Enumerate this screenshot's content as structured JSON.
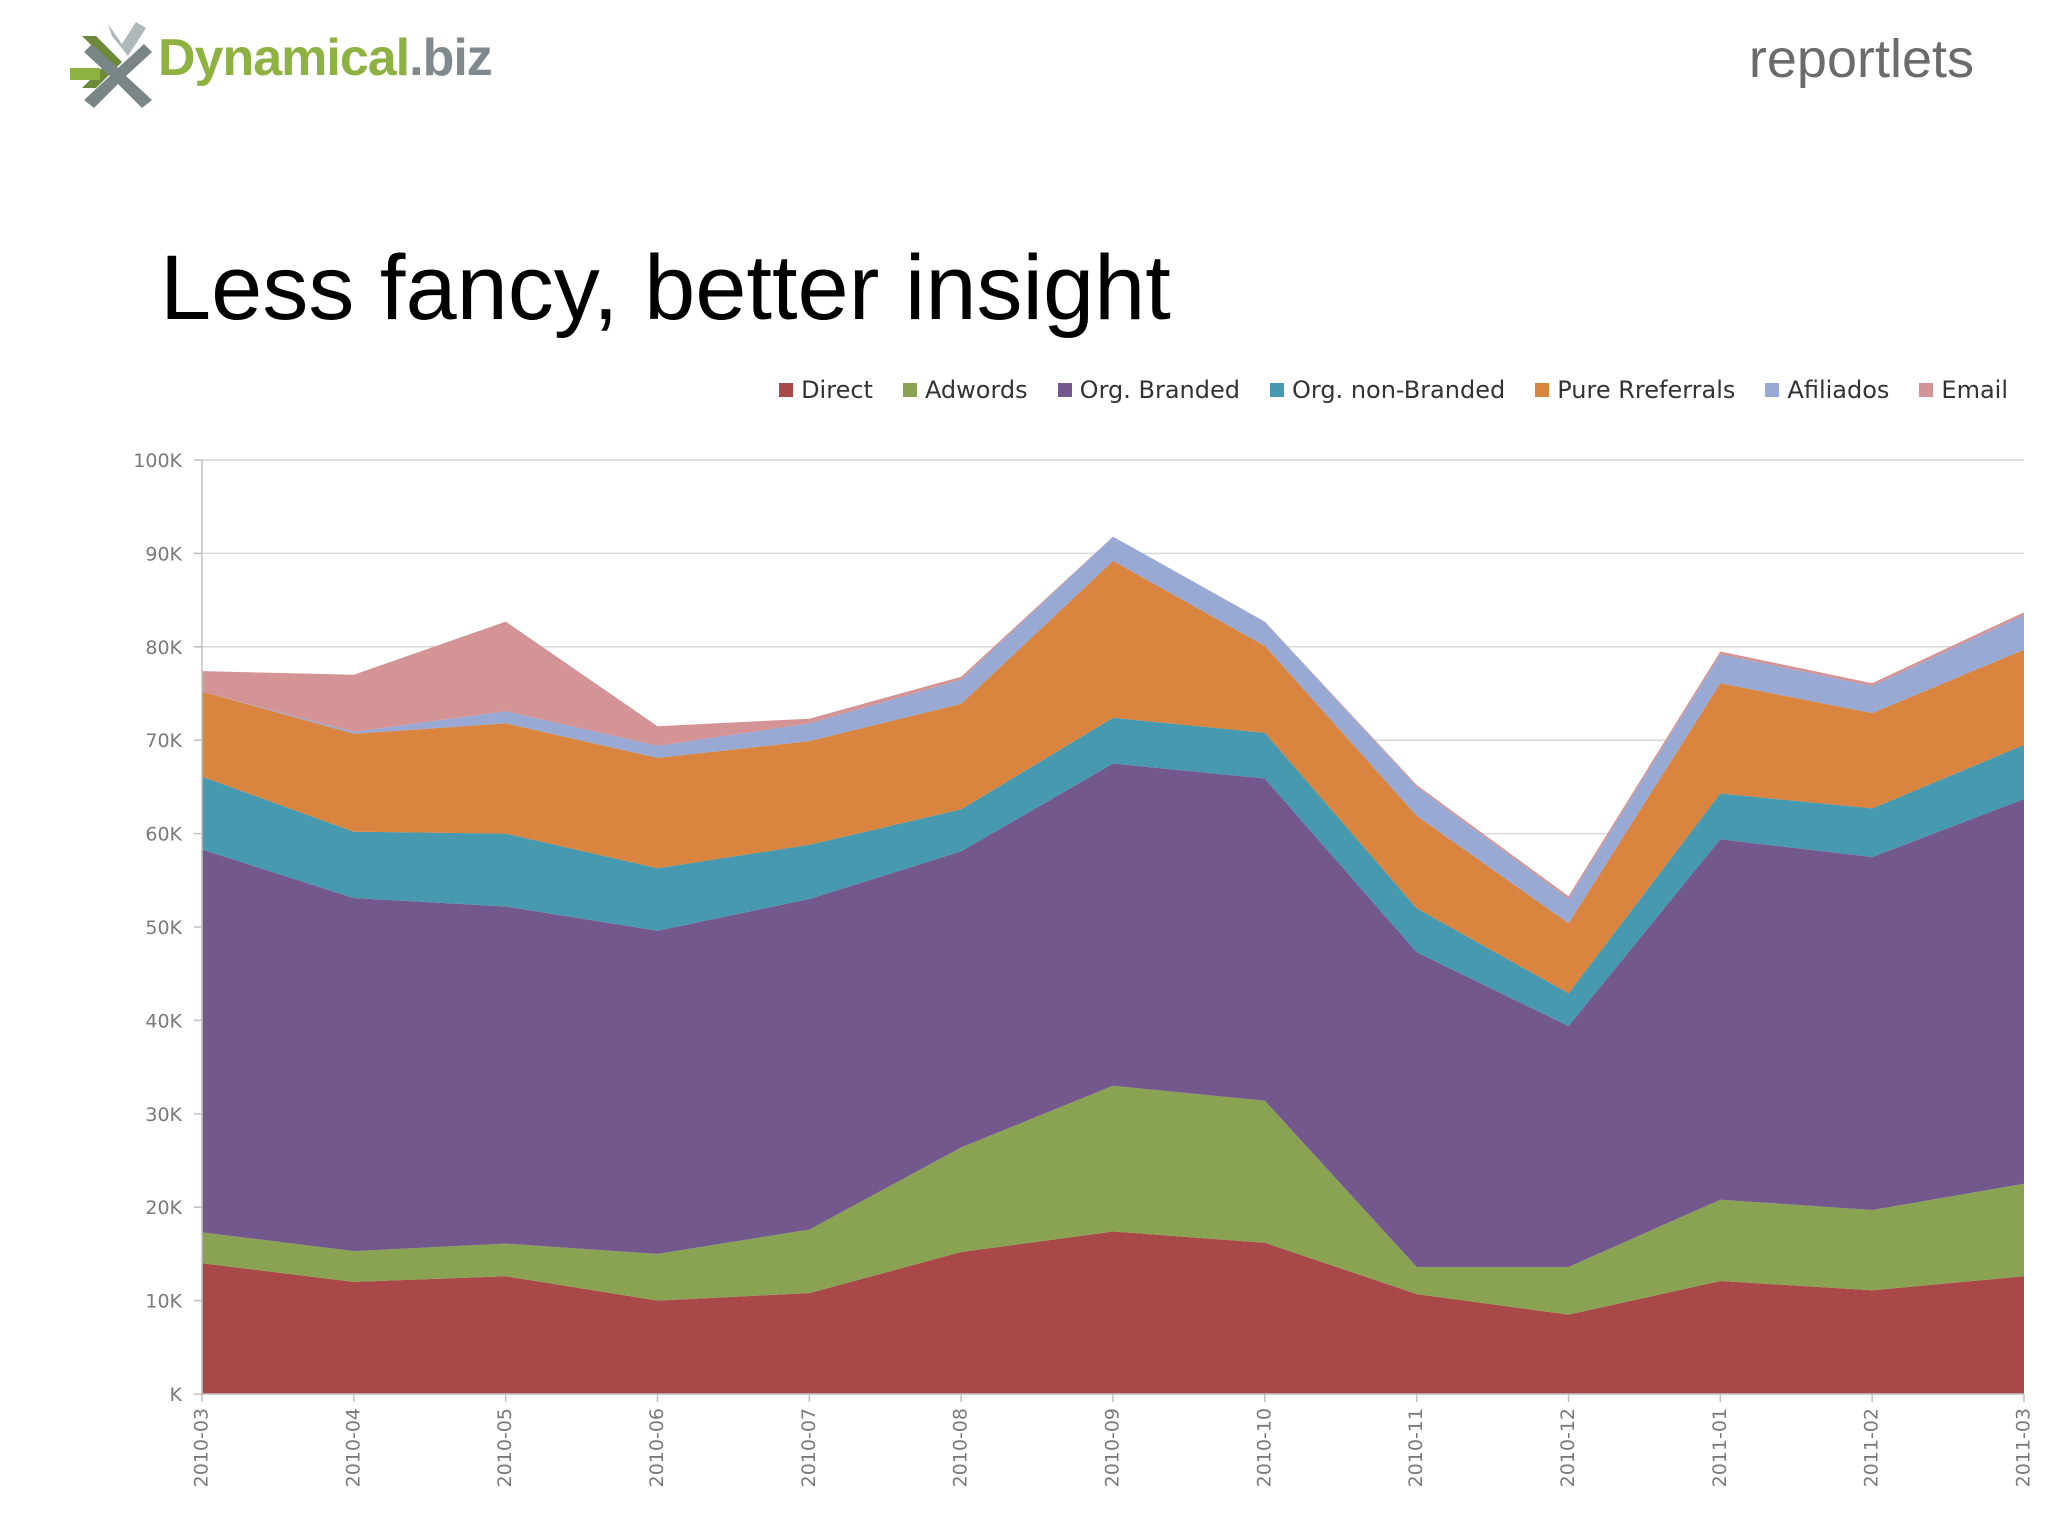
{
  "header": {
    "logo_text_main": "Dynamical",
    "logo_text_suffix": ".biz",
    "brand_right": "reportlets"
  },
  "slide": {
    "title": "Less fancy, better insight"
  },
  "colors": {
    "Direct": "#a84848",
    "Adwords": "#8aa352",
    "Org. Branded": "#73588d",
    "Org. non-Branded": "#4699af",
    "Pure Rreferrals": "#d9843f",
    "Afiliados": "#98a9d3",
    "Email": "#d49394"
  },
  "chart_data": {
    "type": "area",
    "stacked": true,
    "ylim": [
      0,
      100000
    ],
    "y_ticks": [
      "K",
      "10K",
      "20K",
      "30K",
      "40K",
      "50K",
      "60K",
      "70K",
      "80K",
      "90K",
      "100K"
    ],
    "y_tick_values": [
      0,
      10000,
      20000,
      30000,
      40000,
      50000,
      60000,
      70000,
      80000,
      90000,
      100000
    ],
    "categories": [
      "2010-03",
      "2010-04",
      "2010-05",
      "2010-06",
      "2010-07",
      "2010-08",
      "2010-09",
      "2010-10",
      "2010-11",
      "2010-12",
      "2011-01",
      "2011-02",
      "2011-03"
    ],
    "legend_position": "top-right",
    "grid": true,
    "series": [
      {
        "name": "Direct",
        "values": [
          14000,
          12000,
          12600,
          10000,
          10800,
          15200,
          17400,
          16200,
          10700,
          8500,
          12100,
          11100,
          12600
        ]
      },
      {
        "name": "Adwords",
        "values": [
          3300,
          3300,
          3500,
          5000,
          6800,
          11200,
          15600,
          15200,
          2900,
          5100,
          8700,
          8600,
          9900
        ]
      },
      {
        "name": "Org. Branded",
        "values": [
          41000,
          37800,
          36100,
          34600,
          35400,
          31700,
          34500,
          34500,
          33700,
          25800,
          38600,
          37800,
          41200
        ]
      },
      {
        "name": "Org. non-Branded",
        "values": [
          7800,
          7100,
          7800,
          6700,
          5800,
          4500,
          4900,
          4900,
          4700,
          3500,
          4900,
          5200,
          5800
        ]
      },
      {
        "name": "Pure Rreferrals",
        "values": [
          9100,
          10500,
          11800,
          11800,
          11100,
          11300,
          16800,
          9300,
          9900,
          7500,
          11800,
          10200,
          10200
        ]
      },
      {
        "name": "Afiliados",
        "values": [
          0,
          200,
          1300,
          1300,
          1900,
          2600,
          2600,
          2600,
          3100,
          2600,
          3100,
          2900,
          3700
        ]
      },
      {
        "name": "Email",
        "values": [
          2200,
          6100,
          9600,
          2100,
          500,
          300,
          0,
          0,
          200,
          300,
          300,
          300,
          300
        ]
      }
    ]
  }
}
